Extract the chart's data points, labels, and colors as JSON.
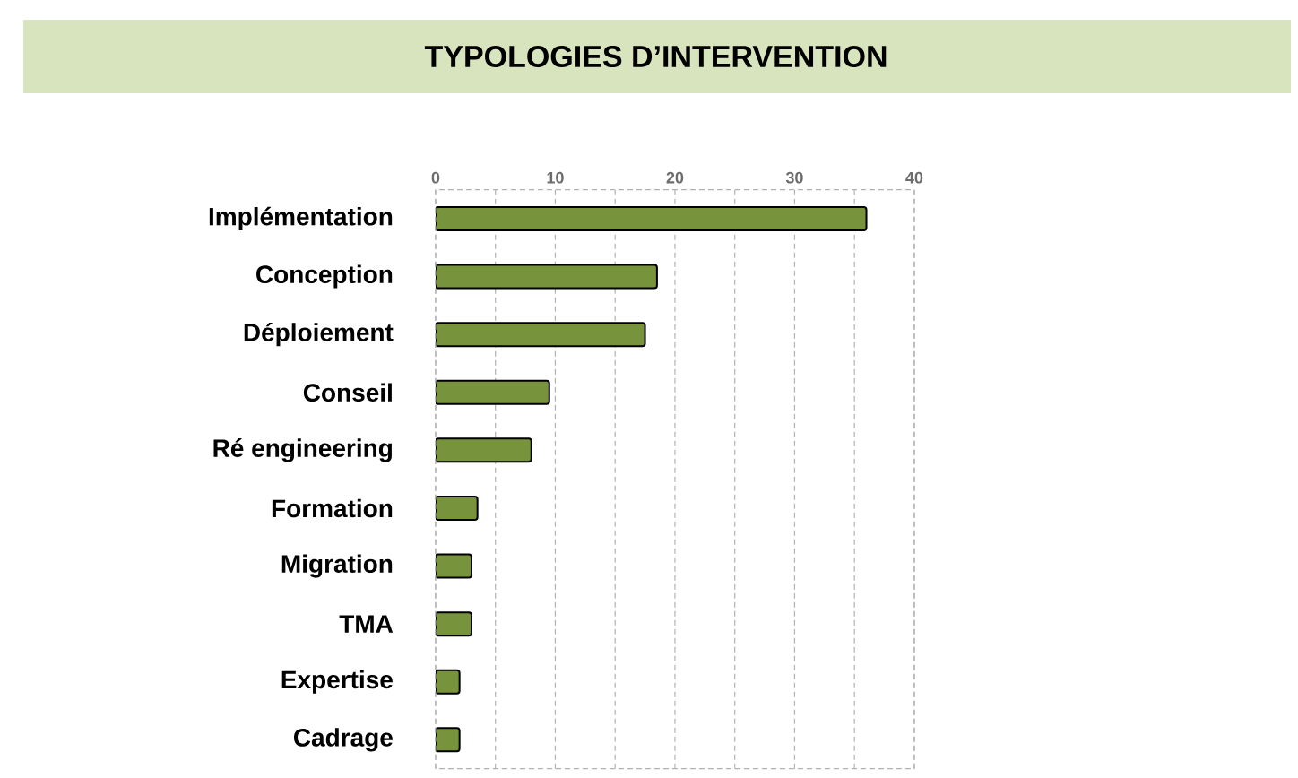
{
  "chart_data": {
    "type": "bar",
    "orientation": "horizontal",
    "title": "TYPOLOGIES D’INTERVENTION",
    "categories": [
      "Implémentation",
      "Conception",
      "Déploiement",
      "Conseil",
      "Ré engineering",
      "Formation",
      "Migration",
      "TMA",
      "Expertise",
      "Cadrage"
    ],
    "values": [
      36,
      18.5,
      17.5,
      9.5,
      8,
      3.5,
      3,
      3,
      2,
      2
    ],
    "color": "#77933c",
    "xlim": [
      0,
      40
    ],
    "xticks": [
      0,
      {
        "value": 5,
        "label": null
      },
      10,
      {
        "value": 15,
        "label": null
      },
      20,
      {
        "value": 25,
        "label": null
      },
      30,
      {
        "value": 35,
        "label": null
      },
      40
    ],
    "grid": "x"
  }
}
